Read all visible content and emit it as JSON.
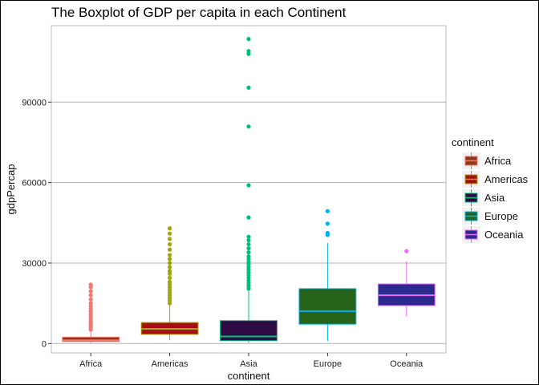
{
  "chart_data": {
    "type": "box",
    "title": "The Boxplot of GDP per capita in each Continent",
    "xlabel": "continent",
    "ylabel": "gdpPercap",
    "ylim": [
      -3500,
      118500
    ],
    "yticks": [
      0,
      30000,
      60000,
      90000
    ],
    "ytick_labels": [
      "0",
      "30000",
      "60000",
      "90000"
    ],
    "grid": true,
    "legend": {
      "title": "continent",
      "position": "right"
    },
    "categories": [
      "Africa",
      "Americas",
      "Asia",
      "Europe",
      "Oceania"
    ],
    "series": [
      {
        "name": "Africa",
        "fill": "#8b3a1a",
        "line": "#f8766d",
        "point": "#f8766d",
        "q1": 761,
        "median": 1192,
        "q3": 2378,
        "whisker_low": 241,
        "whisker_high": 4800,
        "outliers": [
          5200,
          5800,
          6300,
          7000,
          7800,
          8500,
          9300,
          10200,
          11000,
          12000,
          13000,
          14000,
          15000,
          16500,
          18000,
          19500,
          21000,
          21951
        ]
      },
      {
        "name": "Americas",
        "fill": "#a80c19",
        "line": "#a3a500",
        "point": "#a3a500",
        "q1": 3428,
        "median": 5466,
        "q3": 7830,
        "whisker_low": 1202,
        "whisker_high": 14200,
        "outliers": [
          15000,
          16000,
          17000,
          18000,
          19000,
          20000,
          21000,
          22000,
          23000,
          24500,
          26000,
          27000,
          28500,
          30000,
          31500,
          33000,
          35000,
          37000,
          39000,
          41000,
          42952
        ]
      },
      {
        "name": "Asia",
        "fill": "#2f0b45",
        "line": "#00bf7d",
        "point": "#00bf7d",
        "q1": 1057,
        "median": 2647,
        "q3": 8549,
        "whisker_low": 331,
        "whisker_high": 19800,
        "outliers": [
          20500,
          21500,
          22500,
          23500,
          24500,
          25500,
          26500,
          27500,
          28500,
          29500,
          30500,
          31500,
          32500,
          34000,
          35500,
          37000,
          38500,
          39800,
          47000,
          59000,
          80900,
          95400,
          108000,
          109000,
          113523
        ]
      },
      {
        "name": "Europe",
        "fill": "#25641a",
        "line": "#00b0f6",
        "point": "#00b0f6",
        "q1": 7213,
        "median": 12082,
        "q3": 20461,
        "whisker_low": 974,
        "whisker_high": 37500,
        "outliers": [
          40500,
          41200,
          44700,
          49357
        ]
      },
      {
        "name": "Oceania",
        "fill": "#2b2a8f",
        "line": "#e76bf3",
        "point": "#e76bf3",
        "q1": 14142,
        "median": 17983,
        "q3": 22214,
        "whisker_low": 10040,
        "whisker_high": 30700,
        "outliers": [
          34435
        ]
      }
    ]
  }
}
